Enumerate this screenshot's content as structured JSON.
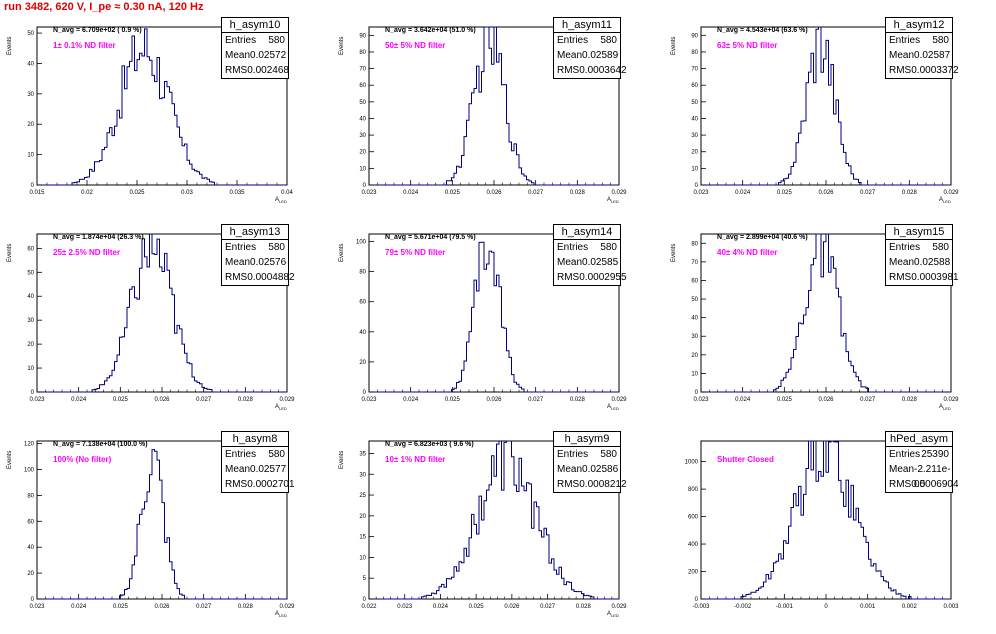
{
  "title": "run 3482,   620 V, I_pe ≈ 0.30 nA, 120 Hz",
  "colors": {
    "title": "#e00000",
    "hist": "#000080",
    "annotation": "#ff00ff"
  },
  "chart_data": [
    {
      "type": "histogram",
      "name": "h_asym10",
      "entries": "580",
      "mean": "0.02572",
      "rms": "0.002468",
      "n_avg_label": "N_avg = 6.709e+02 ( 0.9 %)",
      "filter_label": "1± 0.1% ND filter",
      "xlabel": "A",
      "xlabel_sub": "LED",
      "ylabel": "Events",
      "xlim": [
        0.015,
        0.04
      ],
      "ylim": [
        0,
        52
      ],
      "xticks": [
        "0.015",
        "0.02",
        "0.025",
        "0.03",
        "0.035",
        "0.04"
      ],
      "xtick_vals": [
        0.015,
        0.02,
        0.025,
        0.03,
        0.035,
        0.04
      ],
      "yticks": [
        "0",
        "10",
        "20",
        "30",
        "40",
        "50"
      ],
      "ytick_vals": [
        0,
        10,
        20,
        30,
        40,
        50
      ],
      "center": 0.02572,
      "sigma": 0.002468,
      "peak": 45
    },
    {
      "type": "histogram",
      "name": "h_asym11",
      "entries": "580",
      "mean": "0.02589",
      "rms": "0.0003642",
      "n_avg_label": "N_avg = 3.642e+04 (51.0 %)",
      "filter_label": "50± 5% ND filter",
      "xlabel": "A",
      "xlabel_sub": "LED",
      "ylabel": "Events",
      "xlim": [
        0.023,
        0.029
      ],
      "ylim": [
        0,
        95
      ],
      "xticks": [
        "0.023",
        "0.024",
        "0.025",
        "0.026",
        "0.027",
        "0.028",
        "0.029"
      ],
      "xtick_vals": [
        0.023,
        0.024,
        0.025,
        0.026,
        0.027,
        0.028,
        0.029
      ],
      "yticks": [
        "0",
        "10",
        "20",
        "30",
        "40",
        "50",
        "60",
        "70",
        "80",
        "90"
      ],
      "ytick_vals": [
        0,
        10,
        20,
        30,
        40,
        50,
        60,
        70,
        80,
        90
      ],
      "center": 0.02589,
      "sigma": 0.0003642,
      "peak": 88
    },
    {
      "type": "histogram",
      "name": "h_asym12",
      "entries": "580",
      "mean": "0.02587",
      "rms": "0.0003372",
      "n_avg_label": "N_avg = 4.543e+04 (63.6 %)",
      "filter_label": "63± 5% ND filter",
      "xlabel": "A",
      "xlabel_sub": "LED",
      "ylabel": "Events",
      "xlim": [
        0.023,
        0.029
      ],
      "ylim": [
        0,
        95
      ],
      "xticks": [
        "0.023",
        "0.024",
        "0.025",
        "0.026",
        "0.027",
        "0.028",
        "0.029"
      ],
      "xtick_vals": [
        0.023,
        0.024,
        0.025,
        0.026,
        0.027,
        0.028,
        0.029
      ],
      "yticks": [
        "0",
        "10",
        "20",
        "30",
        "40",
        "50",
        "60",
        "70",
        "80",
        "90"
      ],
      "ytick_vals": [
        0,
        10,
        20,
        30,
        40,
        50,
        60,
        70,
        80,
        90
      ],
      "center": 0.02587,
      "sigma": 0.0003372,
      "peak": 88
    },
    {
      "type": "histogram",
      "name": "h_asym13",
      "entries": "580",
      "mean": "0.02576",
      "rms": "0.0004882",
      "n_avg_label": "N_avg = 1.874e+04 (26.3 %)",
      "filter_label": "25± 2.5% ND filter",
      "xlabel": "A",
      "xlabel_sub": "LED",
      "ylabel": "Events",
      "xlim": [
        0.023,
        0.029
      ],
      "ylim": [
        0,
        66
      ],
      "xticks": [
        "0.023",
        "0.024",
        "0.025",
        "0.026",
        "0.027",
        "0.028",
        "0.029"
      ],
      "xtick_vals": [
        0.023,
        0.024,
        0.025,
        0.026,
        0.027,
        0.028,
        0.029
      ],
      "yticks": [
        "0",
        "10",
        "20",
        "30",
        "40",
        "50",
        "60"
      ],
      "ytick_vals": [
        0,
        10,
        20,
        30,
        40,
        50,
        60
      ],
      "center": 0.02576,
      "sigma": 0.0004882,
      "peak": 60
    },
    {
      "type": "histogram",
      "name": "h_asym14",
      "entries": "580",
      "mean": "0.02585",
      "rms": "0.0002955",
      "n_avg_label": "N_avg = 5.671e+04 (79.5 %)",
      "filter_label": "79± 5% ND filter",
      "xlabel": "A",
      "xlabel_sub": "LED",
      "ylabel": "Events",
      "xlim": [
        0.023,
        0.029
      ],
      "ylim": [
        0,
        105
      ],
      "xticks": [
        "0.023",
        "0.024",
        "0.025",
        "0.026",
        "0.027",
        "0.028",
        "0.029"
      ],
      "xtick_vals": [
        0.023,
        0.024,
        0.025,
        0.026,
        0.027,
        0.028,
        0.029
      ],
      "yticks": [
        "0",
        "20",
        "40",
        "60",
        "80",
        "100"
      ],
      "ytick_vals": [
        0,
        20,
        40,
        60,
        80,
        100
      ],
      "center": 0.02585,
      "sigma": 0.0002955,
      "peak": 100
    },
    {
      "type": "histogram",
      "name": "h_asym15",
      "entries": "580",
      "mean": "0.02588",
      "rms": "0.0003981",
      "n_avg_label": "N_avg = 2.899e+04 (40.6 %)",
      "filter_label": "40± 4% ND filter",
      "xlabel": "A",
      "xlabel_sub": "LED",
      "ylabel": "Events",
      "xlim": [
        0.023,
        0.029
      ],
      "ylim": [
        0,
        85
      ],
      "xticks": [
        "0.023",
        "0.024",
        "0.025",
        "0.026",
        "0.027",
        "0.028",
        "0.029"
      ],
      "xtick_vals": [
        0.023,
        0.024,
        0.025,
        0.026,
        0.027,
        0.028,
        0.029
      ],
      "yticks": [
        "0",
        "10",
        "20",
        "30",
        "40",
        "50",
        "60",
        "70",
        "80"
      ],
      "ytick_vals": [
        0,
        10,
        20,
        30,
        40,
        50,
        60,
        70,
        80
      ],
      "center": 0.02588,
      "sigma": 0.0003981,
      "peak": 78
    },
    {
      "type": "histogram",
      "name": "h_asym8",
      "entries": "580",
      "mean": "0.02577",
      "rms": "0.0002701",
      "n_avg_label": "N_avg = 7.138e+04 (100.0 %)",
      "filter_label": "100% (No filter)",
      "xlabel": "A",
      "xlabel_sub": "LED",
      "ylabel": "Events",
      "xlim": [
        0.023,
        0.029
      ],
      "ylim": [
        0,
        122
      ],
      "xticks": [
        "0.023",
        "0.024",
        "0.025",
        "0.026",
        "0.027",
        "0.028",
        "0.029"
      ],
      "xtick_vals": [
        0.023,
        0.024,
        0.025,
        0.026,
        0.027,
        0.028,
        0.029
      ],
      "yticks": [
        "0",
        "20",
        "40",
        "60",
        "80",
        "100",
        "120"
      ],
      "ytick_vals": [
        0,
        20,
        40,
        60,
        80,
        100,
        120
      ],
      "center": 0.02577,
      "sigma": 0.0002701,
      "peak": 108
    },
    {
      "type": "histogram",
      "name": "h_asym9",
      "entries": "580",
      "mean": "0.02586",
      "rms": "0.0008212",
      "n_avg_label": "N_avg = 6.823e+03 ( 9.6 %)",
      "filter_label": "10± 1% ND filter",
      "xlabel": "A",
      "xlabel_sub": "LED",
      "ylabel": "Events",
      "xlim": [
        0.022,
        0.029
      ],
      "ylim": [
        0,
        38
      ],
      "xticks": [
        "0.022",
        "0.023",
        "0.024",
        "0.025",
        "0.026",
        "0.027",
        "0.028",
        "0.029"
      ],
      "xtick_vals": [
        0.022,
        0.023,
        0.024,
        0.025,
        0.026,
        0.027,
        0.028,
        0.029
      ],
      "yticks": [
        "0",
        "5",
        "10",
        "15",
        "20",
        "25",
        "30",
        "35"
      ],
      "ytick_vals": [
        0,
        5,
        10,
        15,
        20,
        25,
        30,
        35
      ],
      "center": 0.02586,
      "sigma": 0.0008212,
      "peak": 33
    },
    {
      "type": "histogram",
      "name": "hPed_asym",
      "entries": "25390",
      "mean": "-2.211e-05",
      "rms": "0.0006904",
      "n_avg_label": "",
      "filter_label": "Shutter Closed",
      "xlabel": "",
      "xlabel_sub": "",
      "ylabel": "",
      "xlim": [
        -0.003,
        0.003
      ],
      "ylim": [
        0,
        1150
      ],
      "xticks": [
        "-0.003",
        "-0.002",
        "-0.001",
        "0",
        "0.001",
        "0.002",
        "0.003"
      ],
      "xtick_vals": [
        -0.003,
        -0.002,
        -0.001,
        0,
        0.001,
        0.002,
        0.003
      ],
      "yticks": [
        "0",
        "200",
        "400",
        "600",
        "800",
        "1000"
      ],
      "ytick_vals": [
        0,
        200,
        400,
        600,
        800,
        1000
      ],
      "center": -2.211e-05,
      "sigma": 0.0006904,
      "peak": 1100
    }
  ]
}
